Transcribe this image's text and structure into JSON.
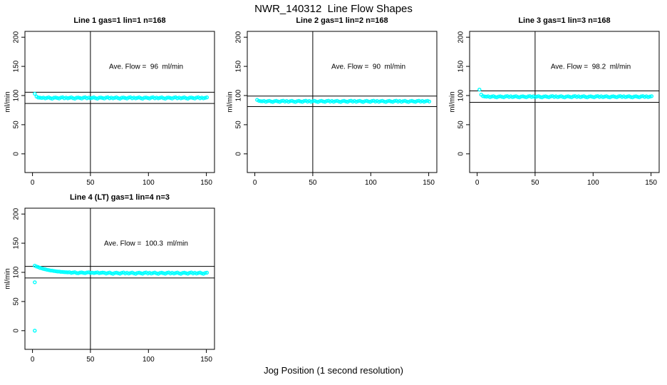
{
  "page": {
    "title": "NWR_140312  Line Flow Shapes",
    "xlabel": "Jog Position (1 second resolution)"
  },
  "colors": {
    "points": "#00ffff",
    "lines": "#000000",
    "background": "#ffffff",
    "text": "#000000"
  },
  "chart_data": [
    {
      "type": "scatter",
      "title": "Line 1 gas=1 lin=1 n=168",
      "annotation": "Ave. Flow =  96  ml/min",
      "ave_flow_ml_min": 96,
      "ylabel": "ml/min",
      "xlim": [
        -6.5,
        157
      ],
      "ylim": [
        -32,
        210
      ],
      "x_ticks": [
        0,
        50,
        100,
        150
      ],
      "y_ticks": [
        0,
        50,
        100,
        150,
        200
      ],
      "vline_x": 50,
      "hlines": [
        105.6,
        86.4
      ],
      "x_start": 2,
      "x_step": 1.5,
      "y_values": [
        103.0,
        98.2,
        96.6,
        96.3,
        95.9,
        96.5,
        95.2,
        96.1,
        96.8,
        95.5,
        94.8,
        96.2,
        96.6,
        95.7,
        95.0,
        96.4,
        96.9,
        95.4,
        96.5,
        95.2,
        96.1,
        96.8,
        95.5,
        94.8,
        96.2,
        96.6,
        95.7,
        95.0,
        96.4,
        96.9,
        95.4,
        96.5,
        95.2,
        96.1,
        96.8,
        95.5,
        94.8,
        96.2,
        96.6,
        95.7,
        95.0,
        96.4,
        96.9,
        95.4,
        96.5,
        95.2,
        96.1,
        96.8,
        95.5,
        94.8,
        96.2,
        96.6,
        95.7,
        95.0,
        96.4,
        96.9,
        95.4,
        96.5,
        95.2,
        96.1,
        96.8,
        95.5,
        94.8,
        96.2,
        96.6,
        95.7,
        95.0,
        96.4,
        96.9,
        95.4,
        96.5,
        95.2,
        96.1,
        96.8,
        95.5,
        94.8,
        96.2,
        96.6,
        95.7,
        95.0,
        96.4,
        96.9,
        95.4,
        96.5,
        95.2,
        96.1,
        96.8,
        95.5,
        94.8,
        96.2,
        96.6,
        95.7,
        95.0,
        96.4,
        96.9,
        95.4,
        96.5,
        95.2,
        96.1,
        96.8
      ]
    },
    {
      "type": "scatter",
      "title": "Line 2 gas=1 lin=2 n=168",
      "annotation": "Ave. Flow =  90  ml/min",
      "ave_flow_ml_min": 90,
      "ylabel": "ml/min",
      "xlim": [
        -6.5,
        157
      ],
      "ylim": [
        -32,
        210
      ],
      "x_ticks": [
        0,
        50,
        100,
        150
      ],
      "y_ticks": [
        0,
        50,
        100,
        150,
        200
      ],
      "vline_x": 50,
      "hlines": [
        99.0,
        81.0
      ],
      "x_start": 2,
      "x_step": 1.5,
      "y_values": [
        92.6,
        91.0,
        90.4,
        90.1,
        90.7,
        89.4,
        90.3,
        91.0,
        89.7,
        89.0,
        90.4,
        90.8,
        89.9,
        89.2,
        90.6,
        91.1,
        89.6,
        90.7,
        89.4,
        90.3,
        91.0,
        89.7,
        89.0,
        90.4,
        90.8,
        89.9,
        89.2,
        90.6,
        91.1,
        89.6,
        90.7,
        89.4,
        90.3,
        91.0,
        89.7,
        89.0,
        90.4,
        90.8,
        89.9,
        89.2,
        90.6,
        91.1,
        89.6,
        90.7,
        89.4,
        90.3,
        91.0,
        89.7,
        89.0,
        90.4,
        90.8,
        89.9,
        89.2,
        90.6,
        91.1,
        89.6,
        90.7,
        89.4,
        90.3,
        91.0,
        89.7,
        89.0,
        90.4,
        90.8,
        89.9,
        89.2,
        90.6,
        91.1,
        89.6,
        90.7,
        89.4,
        90.3,
        91.0,
        89.7,
        89.0,
        90.4,
        90.8,
        89.9,
        89.2,
        90.6,
        91.1,
        89.6,
        90.7,
        89.4,
        90.3,
        91.0,
        89.7,
        89.0,
        90.4,
        90.8,
        89.9,
        89.2,
        90.6,
        91.1,
        89.6,
        90.7,
        89.4,
        90.3,
        91.0,
        89.7
      ]
    },
    {
      "type": "scatter",
      "title": "Line 3 gas=1 lin=3 n=168",
      "annotation": "Ave. Flow =  98.2  ml/min",
      "ave_flow_ml_min": 98.2,
      "ylabel": "ml/min",
      "xlim": [
        -6.5,
        157
      ],
      "ylim": [
        -32,
        210
      ],
      "x_ticks": [
        0,
        50,
        100,
        150
      ],
      "y_ticks": [
        0,
        50,
        100,
        150,
        200
      ],
      "vline_x": 50,
      "hlines": [
        108.0,
        88.4
      ],
      "x_start": 2,
      "x_step": 1.5,
      "y_values": [
        110.2,
        101.6,
        99.0,
        98.4,
        98.0,
        98.6,
        97.3,
        98.2,
        98.9,
        97.6,
        96.9,
        98.3,
        98.7,
        97.8,
        97.1,
        98.5,
        99.0,
        97.5,
        98.6,
        97.3,
        98.2,
        98.9,
        97.6,
        96.9,
        98.3,
        98.7,
        97.8,
        97.1,
        98.5,
        99.0,
        97.5,
        98.6,
        97.3,
        98.2,
        98.9,
        97.6,
        96.9,
        98.3,
        98.7,
        97.8,
        97.1,
        98.5,
        99.0,
        97.5,
        98.6,
        97.3,
        98.2,
        98.9,
        97.6,
        96.9,
        98.3,
        98.7,
        97.8,
        97.1,
        98.5,
        99.0,
        97.5,
        98.6,
        97.3,
        98.2,
        98.9,
        97.6,
        96.9,
        98.3,
        98.7,
        97.8,
        97.1,
        98.5,
        99.0,
        97.5,
        98.6,
        97.3,
        98.2,
        98.9,
        97.6,
        96.9,
        98.3,
        98.7,
        97.8,
        97.1,
        98.5,
        99.0,
        97.5,
        98.6,
        97.3,
        98.2,
        98.9,
        97.6,
        96.9,
        98.3,
        98.7,
        97.8,
        97.1,
        98.5,
        99.0,
        97.5,
        98.6,
        97.3,
        98.2,
        98.9
      ]
    },
    {
      "type": "scatter",
      "title": "Line 4 (LT) gas=1 lin=4 n=3",
      "annotation": "Ave. Flow =  100.3  ml/min",
      "ave_flow_ml_min": 100.3,
      "ylabel": "ml/min",
      "xlim": [
        -6.5,
        157
      ],
      "ylim": [
        -32,
        210
      ],
      "x_ticks": [
        0,
        50,
        100,
        150
      ],
      "y_ticks": [
        0,
        50,
        100,
        150,
        200
      ],
      "vline_x": 50,
      "hlines": [
        110.3,
        90.3
      ],
      "x_start": 2,
      "x_step": 1.5,
      "y_values": [
        111.4,
        110.0,
        109.0,
        107.7,
        106.9,
        105.9,
        105.2,
        104.4,
        103.9,
        103.2,
        102.9,
        102.3,
        102.0,
        101.5,
        101.3,
        100.9,
        100.7,
        100.4,
        100.3,
        100.0,
        100.2,
        99.1,
        99.7,
        100.3,
        98.9,
        98.5,
        99.6,
        99.9,
        99.2,
        98.7,
        99.8,
        100.1,
        99.0,
        99.5,
        98.8,
        99.4,
        99.9,
        98.6,
        99.2,
        99.6,
        99.3,
        98.0,
        98.9,
        99.6,
        98.3,
        97.6,
        99.0,
        99.4,
        98.5,
        97.8,
        99.2,
        99.7,
        98.2,
        99.3,
        98.0,
        98.9,
        99.6,
        98.3,
        97.6,
        99.0,
        99.4,
        98.5,
        97.8,
        99.2,
        99.7,
        98.2,
        99.3,
        98.0,
        98.9,
        99.6,
        98.3,
        97.6,
        99.0,
        99.4,
        98.5,
        97.8,
        99.2,
        99.7,
        98.2,
        99.3,
        98.0,
        98.9,
        99.6,
        98.3,
        97.6,
        99.0,
        99.4,
        98.5,
        97.8,
        99.2,
        99.7,
        98.2,
        99.3,
        98.0,
        98.9,
        99.6,
        98.3,
        97.6,
        99.0,
        99.4
      ],
      "outliers": [
        [
          2,
          83
        ],
        [
          2,
          0
        ]
      ]
    }
  ]
}
